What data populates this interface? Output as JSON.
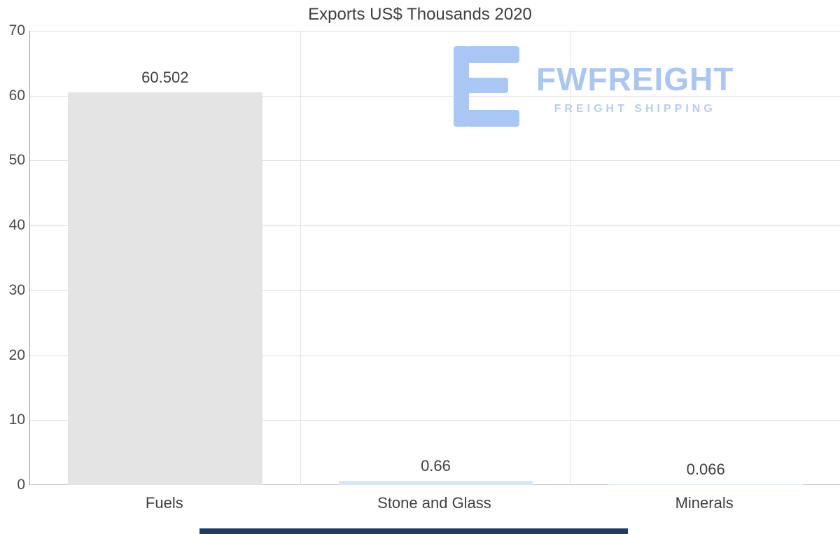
{
  "watermark": {
    "brand": "FWFREIGHT",
    "tagline": "FREIGHT SHIPPING"
  },
  "colors": {
    "logo_blue": "#a9c6f4",
    "tagline_blue": "#b4cdf6",
    "bar_gray": "#e4e4e4",
    "bar_light_blue": "#d6e7fa",
    "footer_strip": "#1d3a5f",
    "gridline": "#dedede",
    "text_dark": "#3f3f3f"
  },
  "chart_data": {
    "type": "bar",
    "title": "Exports US$ Thousands 2020",
    "categories": [
      "Fuels",
      "Stone and Glass",
      "Minerals"
    ],
    "values": [
      60.502,
      0.66,
      0.066
    ],
    "value_labels": [
      "60.502",
      "0.66",
      "0.066"
    ],
    "series_unit": "US$ Thousands",
    "xlabel": "",
    "ylabel": "",
    "ylim": [
      0,
      70
    ],
    "yticks": [
      0,
      10,
      20,
      30,
      40,
      50,
      60,
      70
    ],
    "grid": "horizontal",
    "legend": "none",
    "bar_colors": [
      "#e4e4e4",
      "#d6e7fa",
      "#d6e7fa"
    ]
  }
}
